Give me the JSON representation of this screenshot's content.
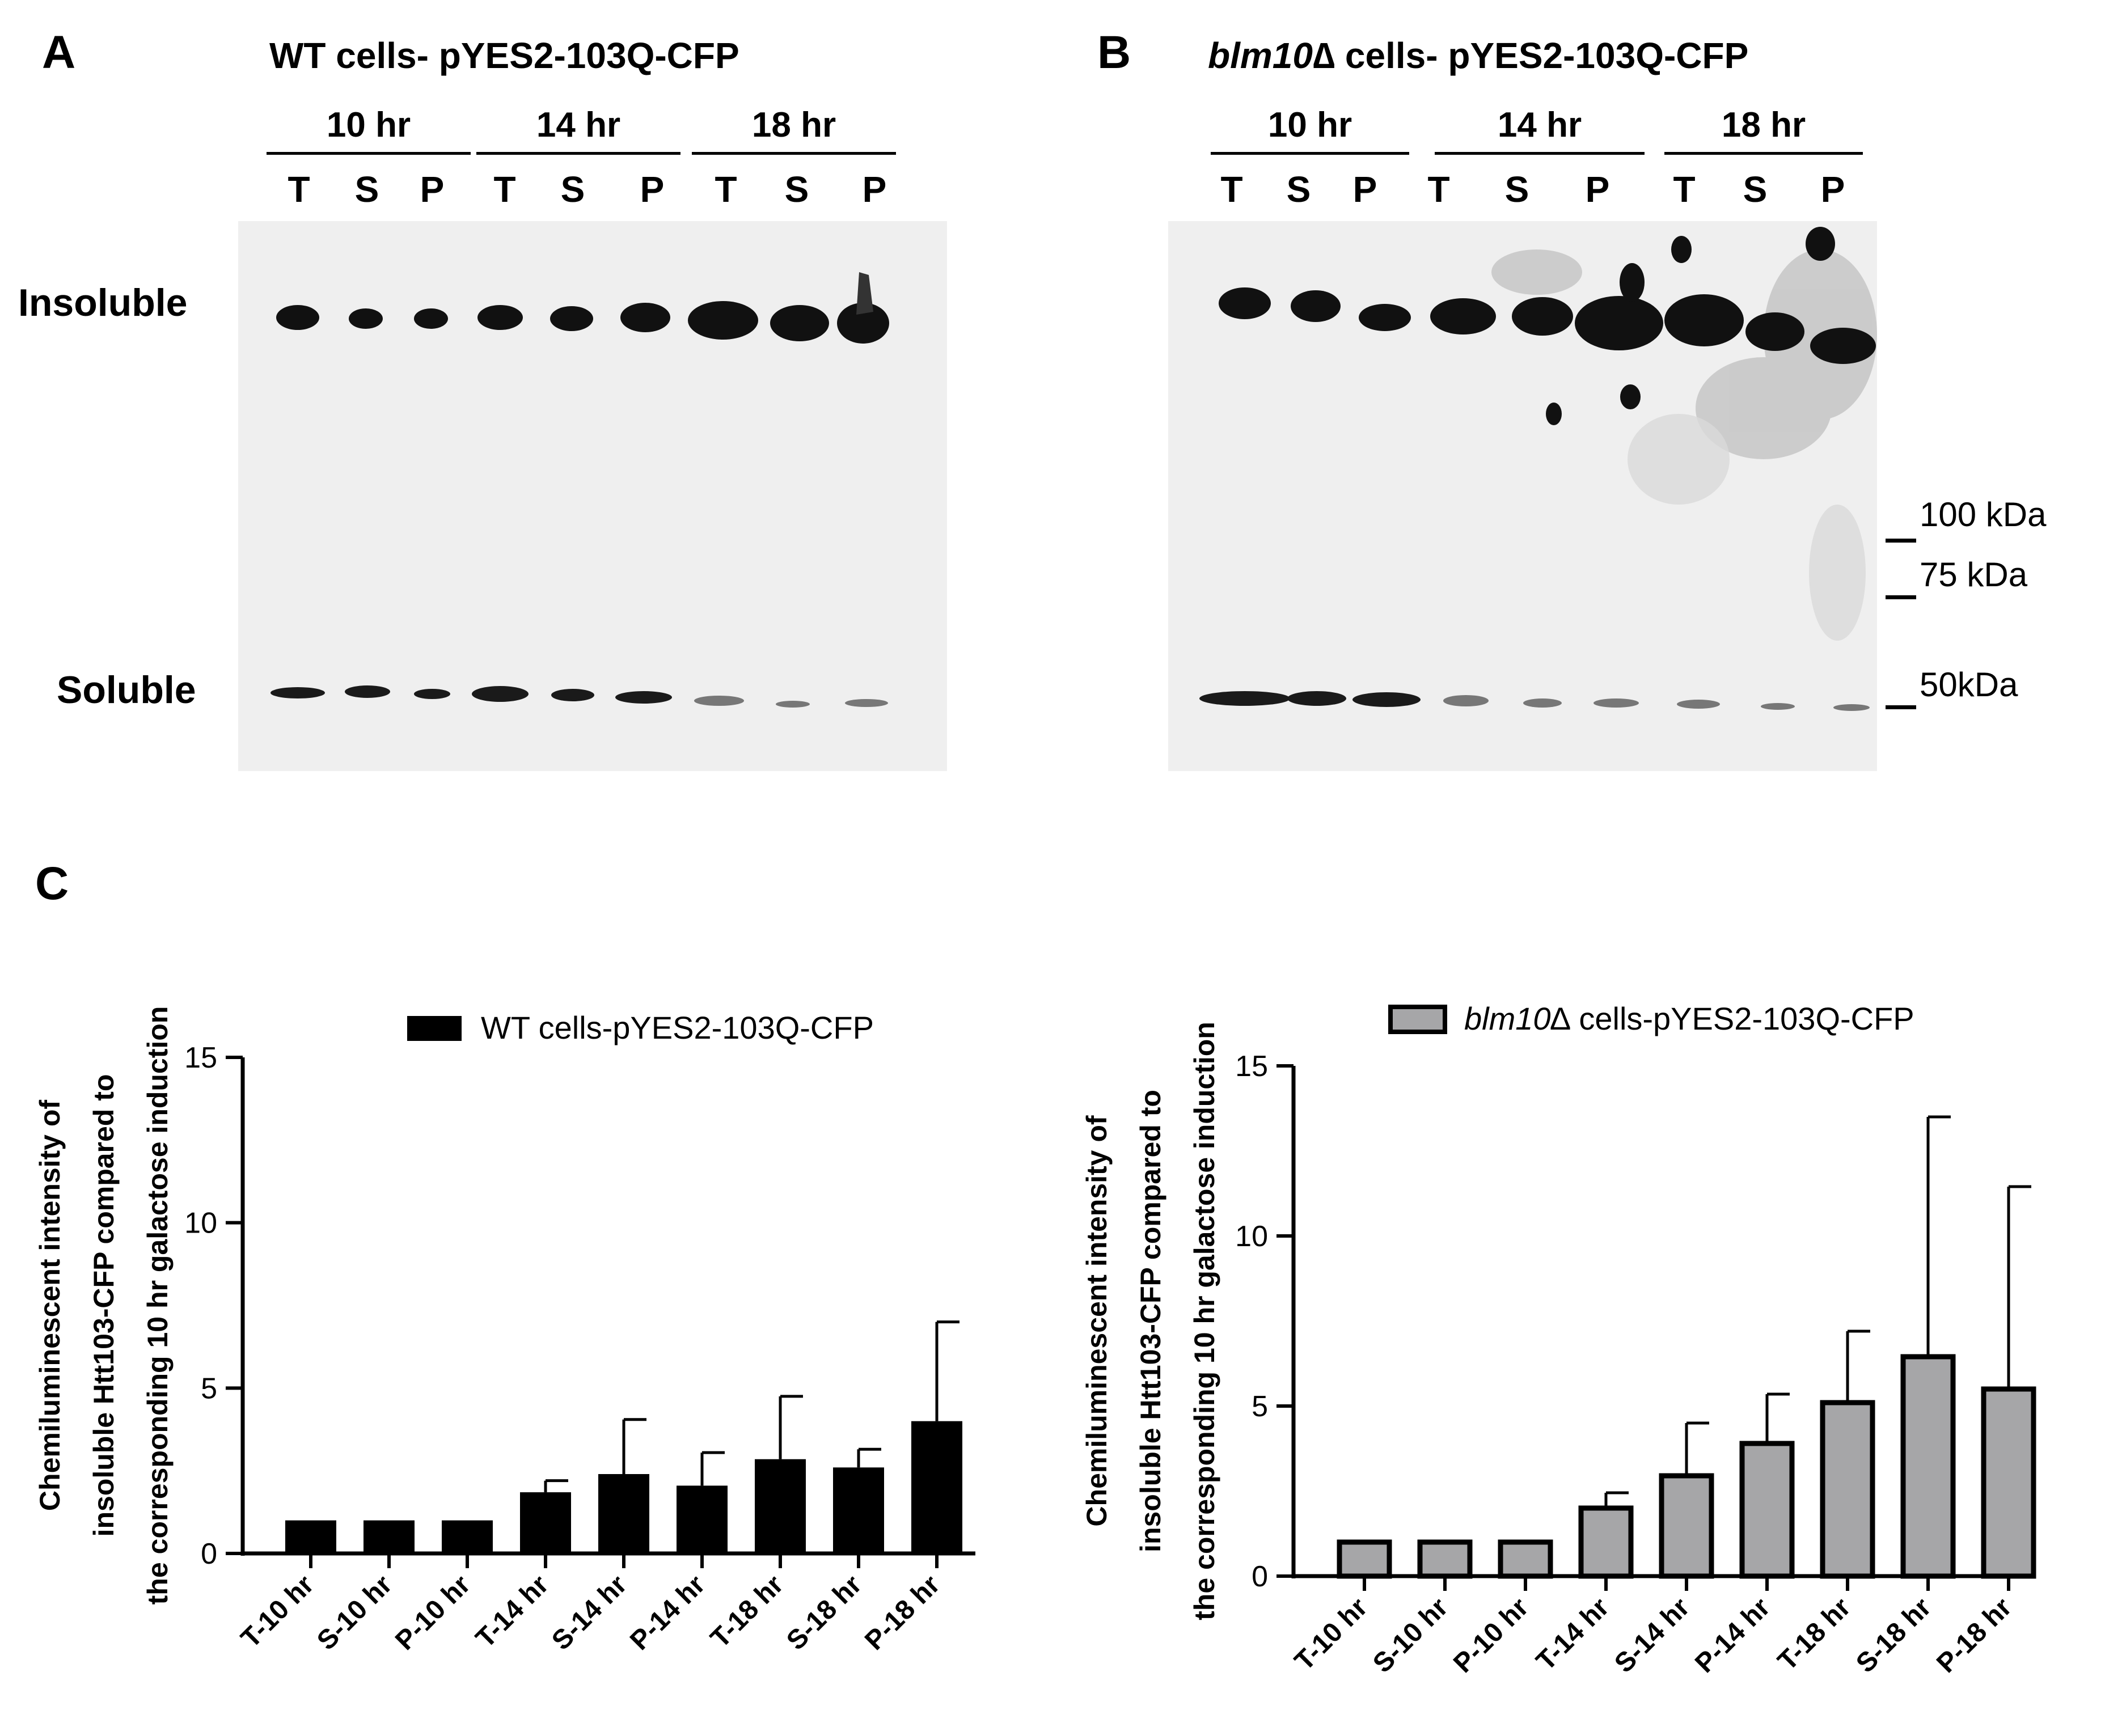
{
  "panel_labels": {
    "a": "A",
    "b": "B",
    "c": "C"
  },
  "blots": [
    {
      "title_prefix": "",
      "title_italic": "",
      "title_text": "WT cells- pYES2-103Q-CFP",
      "timepoints": [
        "10 hr",
        "14 hr",
        "18 hr"
      ],
      "lanes": [
        "T",
        "S",
        "P",
        "T",
        "S",
        "P",
        "T",
        "S",
        "P"
      ],
      "band_labels": {
        "insoluble": "Insoluble",
        "soluble": "Soluble"
      }
    },
    {
      "title_italic": "blm10",
      "title_symbol": "∆",
      "title_text": " cells- pYES2-103Q-CFP",
      "timepoints": [
        "10 hr",
        "14 hr",
        "18 hr"
      ],
      "lanes": [
        "T",
        "S",
        "P",
        "T",
        "S",
        "P",
        "T",
        "S",
        "P"
      ],
      "mw_markers": [
        "100 kDa",
        "75 kDa",
        "50kDa"
      ]
    }
  ],
  "chart_data": [
    {
      "type": "bar",
      "categories": [
        "T-10 hr",
        "S-10 hr",
        "P-10 hr",
        "T-14 hr",
        "S-14 hr",
        "P-14 hr",
        "T-18 hr",
        "S-18 hr",
        "P-18 hr"
      ],
      "series": [
        {
          "name": "WT cells-pYES2-103Q-CFP",
          "values": [
            1.0,
            1.0,
            1.0,
            1.85,
            2.4,
            2.05,
            2.85,
            2.6,
            4.0
          ],
          "error_upper": [
            1.0,
            1.0,
            1.0,
            2.2,
            4.05,
            3.05,
            4.75,
            3.15,
            7.0
          ],
          "color": "#000000"
        }
      ],
      "ylabel_lines": [
        "Chemiluminescent intensity of",
        "insoluble Htt103-CFP compared to",
        "the corresponding 10 hr galactose induction"
      ],
      "ylim": [
        0,
        15
      ],
      "yticks": [
        "0",
        "5",
        "10",
        "15"
      ],
      "legend": {
        "italic": "",
        "text": "WT cells-pYES2-103Q-CFP"
      }
    },
    {
      "type": "bar",
      "categories": [
        "T-10 hr",
        "S-10 hr",
        "P-10 hr",
        "T-14 hr",
        "S-14 hr",
        "P-14 hr",
        "T-18 hr",
        "S-18 hr",
        "P-18 hr"
      ],
      "series": [
        {
          "name": "blm10∆ cells-pYES2-103Q-CFP",
          "values": [
            1.0,
            1.0,
            1.0,
            2.0,
            2.95,
            3.9,
            5.1,
            6.45,
            5.5
          ],
          "error_upper": [
            1.0,
            1.0,
            1.0,
            2.45,
            4.5,
            5.35,
            7.2,
            13.5,
            11.45
          ],
          "color": "#a6a6a8"
        }
      ],
      "ylabel_lines": [
        "Chemiluminescent intensity of",
        "insoluble Htt103-CFP compared to",
        "the corresponding 10 hr galactose induction"
      ],
      "ylim": [
        0,
        15
      ],
      "yticks": [
        "0",
        "5",
        "10",
        "15"
      ],
      "legend": {
        "italic": "blm10",
        "text": "∆ cells-pYES2-103Q-CFP"
      }
    }
  ]
}
